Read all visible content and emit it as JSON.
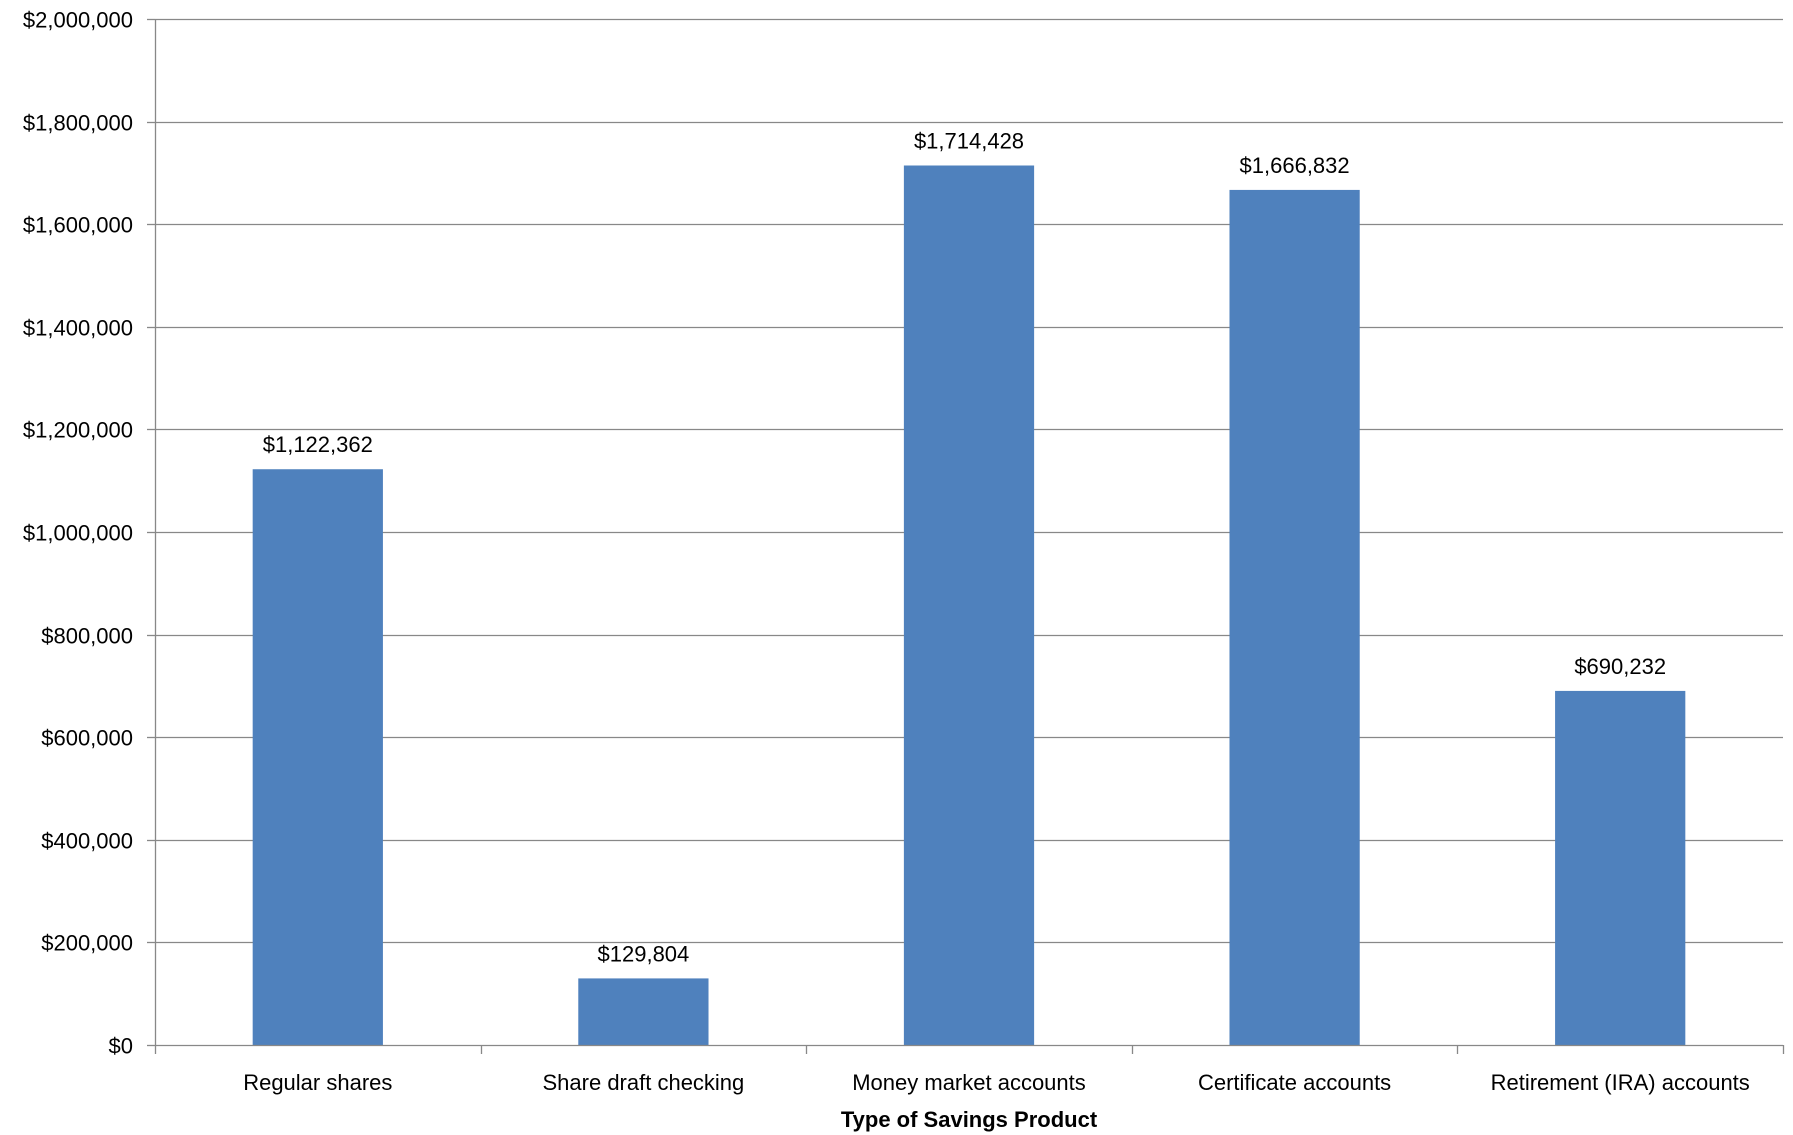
{
  "chart_data": {
    "type": "bar",
    "title": "",
    "xlabel": "Type of Savings Product",
    "ylabel": "",
    "categories": [
      "Regular shares",
      "Share draft checking",
      "Money market accounts",
      "Certificate accounts",
      "Retirement (IRA) accounts"
    ],
    "values": [
      1122362,
      129804,
      1714428,
      1666832,
      690232
    ],
    "data_labels": [
      "$1,122,362",
      "$129,804",
      "$1,714,428",
      "$1,666,832",
      "$690,232"
    ],
    "ylim": [
      0,
      2000000
    ],
    "y_ticks": [
      0,
      200000,
      400000,
      600000,
      800000,
      1000000,
      1200000,
      1400000,
      1600000,
      1800000,
      2000000
    ],
    "y_tick_labels": [
      "$0",
      "$200,000",
      "$400,000",
      "$600,000",
      "$800,000",
      "$1,000,000",
      "$1,200,000",
      "$1,400,000",
      "$1,600,000",
      "$1,800,000",
      "$2,000,000"
    ],
    "grid": true,
    "legend": "none",
    "colors": {
      "bar": "#4F81BD",
      "grid": "#888888",
      "axis": "#888888",
      "text": "#000000"
    }
  }
}
